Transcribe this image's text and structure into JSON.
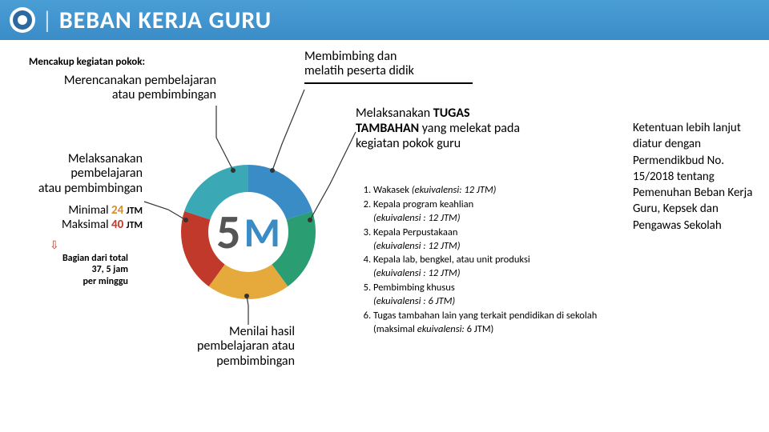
{
  "header": {
    "title": "BEBAN KERJA GURU"
  },
  "subtitle": "Mencakup kegiatan pokok:",
  "items": {
    "i1": "Merencanakan pembelajaran\natau pembimbingan",
    "i2a": "Melaksanakan\npembelajaran\natau pembimbingan",
    "i2b_min": "Minimal",
    "i2b_min_n": "24",
    "i2b_max": "Maksimal",
    "i2b_max_n": "40",
    "i2b_unit": "JTM",
    "i2_small": "Bagian dari total\n37, 5 jam\nper minggu",
    "i3": "Menilai hasil\npembelajaran atau\npembimbingan",
    "i4": "Membimbing dan\nmelatih peserta didik",
    "i5_a": "Melaksanakan ",
    "i5_b": "TUGAS TAMBAHAN",
    "i5_c": " yang melekat pada kegiatan pokok guru"
  },
  "list": [
    {
      "t": "Wakasek ",
      "d": "(ekuivalensi: 12 JTM)"
    },
    {
      "t": "Kepala program keahlian",
      "d": "(ekuivalensi : 12 JTM)"
    },
    {
      "t": "Kepala Perpustakaan",
      "d": "(ekuivalensi : 12 JTM)"
    },
    {
      "t": "Kepala lab, bengkel, atau unit produksi",
      "d": "(ekuivalensi : 12 JTM)"
    },
    {
      "t": "Pembimbing khusus",
      "d": "(ekuivalensi : 6 JTM)"
    },
    {
      "t": "Tugas tambahan lain",
      "t2": " yang terkait pendidikan di sekolah  (maksimal ",
      "d": "ekuivalensi:",
      "d2": " 6 JTM)"
    }
  ],
  "right_note": "Ketentuan lebih lanjut diatur dengan Permendikbud No. 15/2018 tentang Pemenuhan Beban Kerja Guru, Kepsek dan Pengawas Sekolah",
  "donut": {
    "center_num": "5",
    "center_letter": "M",
    "slices": [
      {
        "color": "#3a8cc6",
        "start": -90,
        "end": -18
      },
      {
        "color": "#2a9d72",
        "start": -18,
        "end": 54
      },
      {
        "color": "#e6a93c",
        "start": 54,
        "end": 126
      },
      {
        "color": "#c0392b",
        "start": 126,
        "end": 198
      },
      {
        "color": "#3aa8b5",
        "start": 198,
        "end": 270
      }
    ],
    "r_out": 84,
    "r_in": 50
  }
}
